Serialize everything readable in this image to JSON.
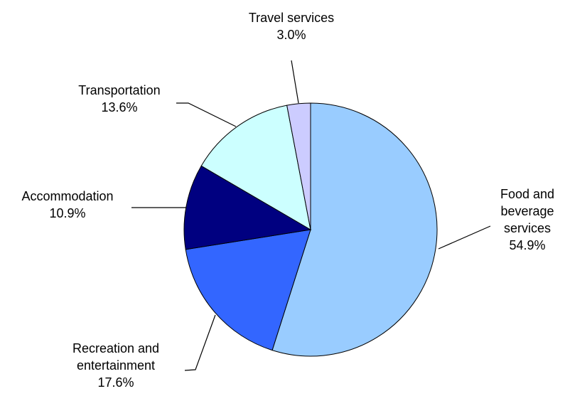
{
  "chart_data": {
    "type": "pie",
    "title": "",
    "slices": [
      {
        "label_lines": [
          "Food and",
          "beverage",
          "services"
        ],
        "pct_label": "54.9%",
        "value": 54.9,
        "color": "#99ccff"
      },
      {
        "label_lines": [
          "Recreation and",
          "entertainment"
        ],
        "pct_label": "17.6%",
        "value": 17.6,
        "color": "#3366ff"
      },
      {
        "label_lines": [
          "Accommodation"
        ],
        "pct_label": "10.9%",
        "value": 10.9,
        "color": "#000080"
      },
      {
        "label_lines": [
          "Transportation"
        ],
        "pct_label": "13.6%",
        "value": 13.6,
        "color": "#ccffff"
      },
      {
        "label_lines": [
          "Travel services"
        ],
        "pct_label": "3.0%",
        "value": 3.0,
        "color": "#ccccff"
      }
    ]
  }
}
